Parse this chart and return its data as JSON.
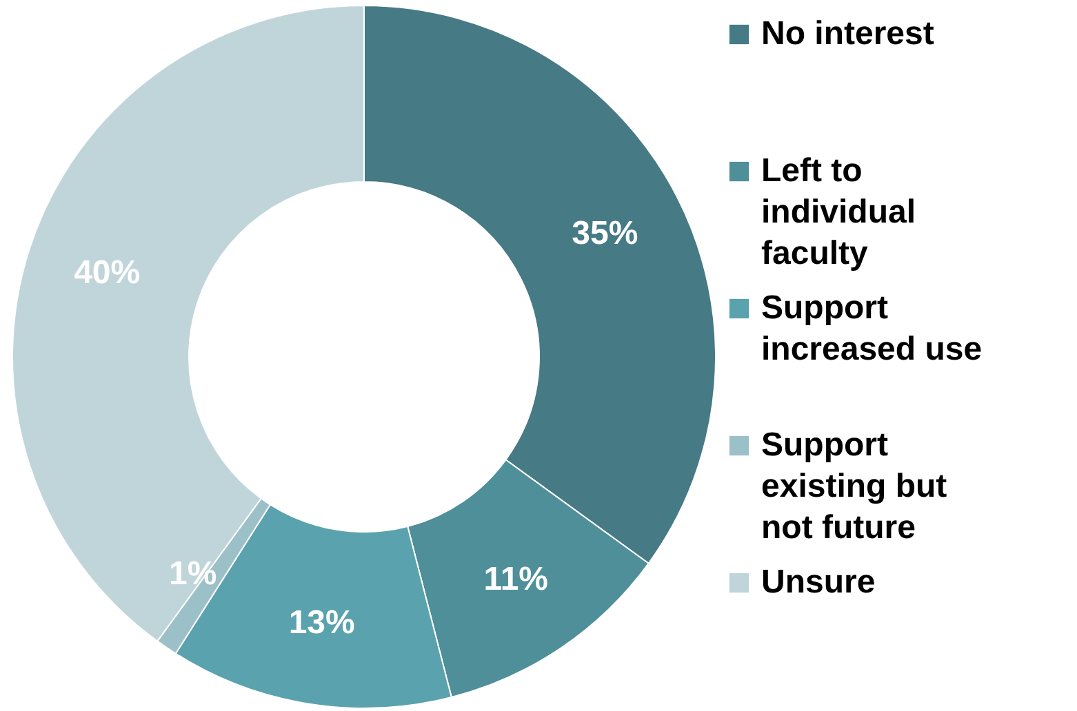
{
  "chart_data": {
    "type": "donut",
    "categories": [
      "No interest",
      "Left to individual faculty",
      "Support increased use",
      "Support existing but not future",
      "Unsure"
    ],
    "values": [
      35,
      11,
      13,
      1,
      40
    ],
    "colors": [
      "#467a84",
      "#4e8f99",
      "#5aa2ad",
      "#9cc0c7",
      "#c0d5da"
    ],
    "value_labels": [
      "35%",
      "11%",
      "13%",
      "1%",
      "40%"
    ],
    "legend": "right"
  }
}
